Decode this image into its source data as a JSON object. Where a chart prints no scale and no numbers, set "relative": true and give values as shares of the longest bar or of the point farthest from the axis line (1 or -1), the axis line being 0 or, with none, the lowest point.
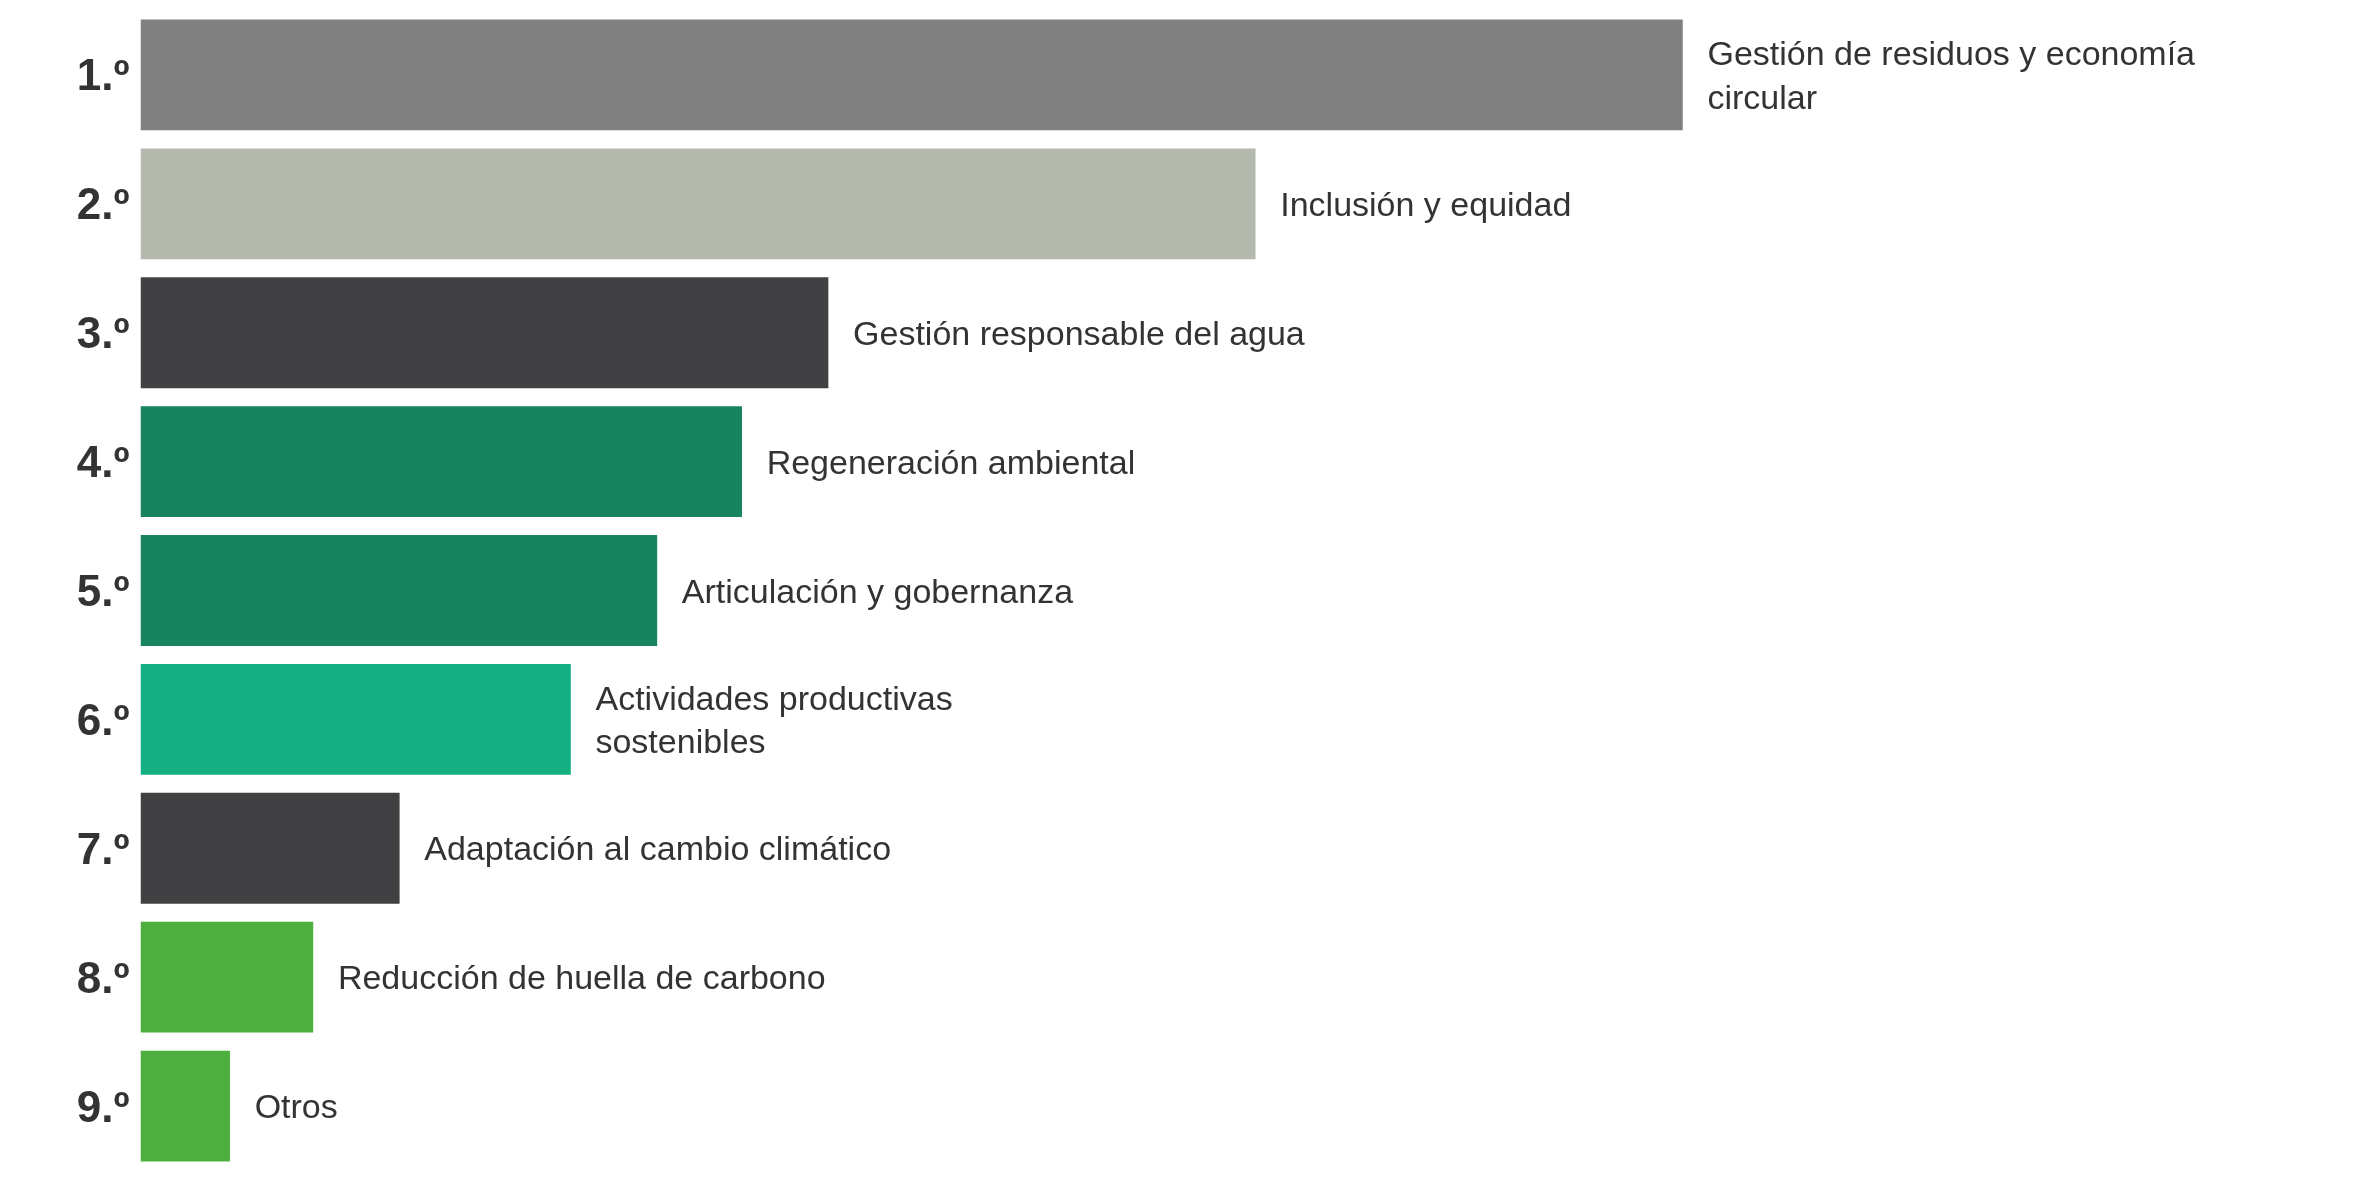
{
  "chart_data": {
    "type": "bar",
    "orientation": "horizontal",
    "relative": true,
    "categories": [
      "1.º",
      "2.º",
      "3.º",
      "4.º",
      "5.º",
      "6.º",
      "7.º",
      "8.º",
      "9.º"
    ],
    "values": [
      1,
      0.723,
      0.446,
      0.39,
      0.335,
      0.279,
      0.168,
      0.112,
      0.058
    ],
    "colors": [
      "#808080",
      "#b5b8ad",
      "#414042",
      "#17845f",
      "#17845f",
      "#14b082",
      "#414042",
      "#4caf3e",
      "#4caf3e"
    ],
    "annotations": [
      {
        "text": "Gestión de residuos y economía circular",
        "x": 1,
        "y": "1.º"
      },
      {
        "text": "Inclusión y equidad",
        "x": 0.723,
        "y": "2.º"
      },
      {
        "text": "Gestión responsable del agua",
        "x": 0.446,
        "y": "3.º"
      },
      {
        "text": "Regeneración ambiental",
        "x": 0.39,
        "y": "4.º"
      },
      {
        "text": "Articulación y gobernanza",
        "x": 0.335,
        "y": "5.º"
      },
      {
        "text": "Actividades productivas sostenibles",
        "x": 0.279,
        "y": "6.º"
      },
      {
        "text": "Adaptación al cambio climático",
        "x": 0.168,
        "y": "7.º"
      },
      {
        "text": "Reducción de huella de carbono",
        "x": 0.112,
        "y": "8.º"
      },
      {
        "text": "Otros",
        "x": 0.058,
        "y": "9.º"
      }
    ]
  }
}
